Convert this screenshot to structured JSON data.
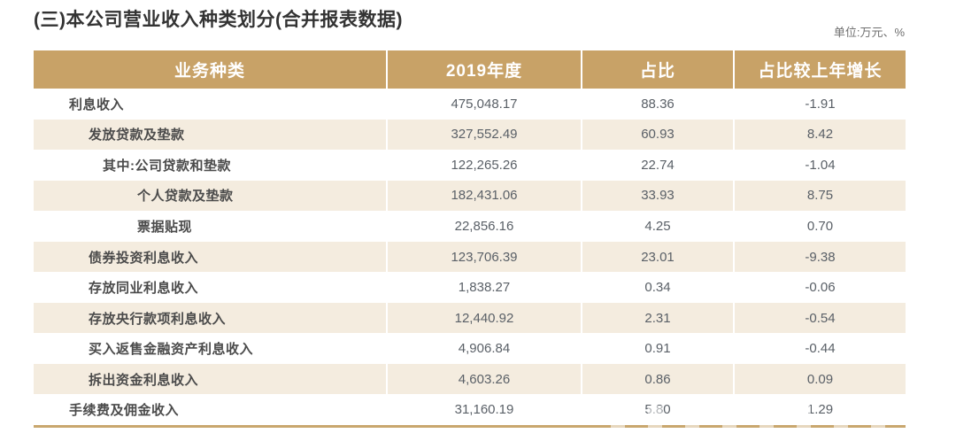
{
  "page": {
    "title": "(三)本公司营业收入种类划分(合并报表数据)",
    "unit_note": "单位:万元、%"
  },
  "table": {
    "columns": [
      "业务种类",
      "2019年度",
      "占比",
      "占比较上年增长"
    ],
    "rows": [
      {
        "label": "利息收入",
        "indent": 1,
        "amount": "475,048.17",
        "share": "88.36",
        "yoy": "-1.91"
      },
      {
        "label": "发放贷款及垫款",
        "indent": 2,
        "amount": "327,552.49",
        "share": "60.93",
        "yoy": "8.42"
      },
      {
        "label": "其中:公司贷款和垫款",
        "indent": 3,
        "amount": "122,265.26",
        "share": "22.74",
        "yoy": "-1.04"
      },
      {
        "label": "个人贷款及垫款",
        "indent": 4,
        "amount": "182,431.06",
        "share": "33.93",
        "yoy": "8.75"
      },
      {
        "label": "票据贴现",
        "indent": 4,
        "amount": "22,856.16",
        "share": "4.25",
        "yoy": "0.70"
      },
      {
        "label": "债券投资利息收入",
        "indent": 2,
        "amount": "123,706.39",
        "share": "23.01",
        "yoy": "-9.38"
      },
      {
        "label": "存放同业利息收入",
        "indent": 2,
        "amount": "1,838.27",
        "share": "0.34",
        "yoy": "-0.06"
      },
      {
        "label": "存放央行款项利息收入",
        "indent": 2,
        "amount": "12,440.92",
        "share": "2.31",
        "yoy": "-0.54"
      },
      {
        "label": "买入返售金融资产利息收入",
        "indent": 2,
        "amount": "4,906.84",
        "share": "0.91",
        "yoy": "-0.44"
      },
      {
        "label": "拆出资金利息收入",
        "indent": 2,
        "amount": "4,603.26",
        "share": "0.86",
        "yoy": "0.09"
      },
      {
        "label": "手续费及佣金收入",
        "indent": 1,
        "amount": "31,160.19",
        "share": "5.80",
        "yoy": "1.29"
      }
    ]
  },
  "colors": {
    "header_bg": "#c8a267",
    "row_alt_bg": "#f4ecdf",
    "border_gold": "#c9a76e",
    "title_text": "#333333",
    "unit_text": "#6f6f6f",
    "label_text": "#4b4b4b",
    "number_text": "#5a6067",
    "header_text": "#ffffff"
  }
}
